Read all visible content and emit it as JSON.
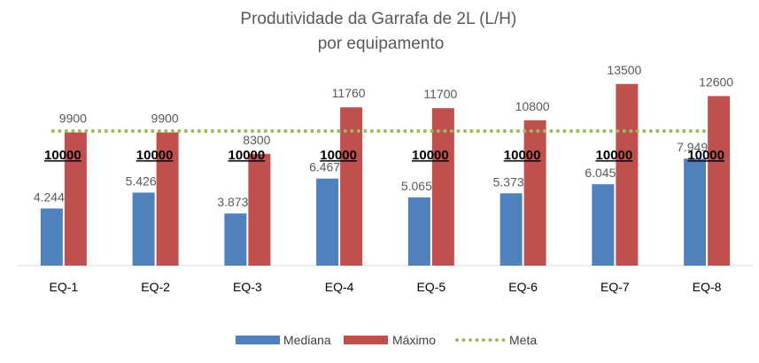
{
  "chart_data": {
    "type": "bar",
    "title": "Produtividade da Garrafa de 2L (L/H)",
    "subtitle": "por equipamento",
    "categories": [
      "EQ-1",
      "EQ-2",
      "EQ-3",
      "EQ-4",
      "EQ-5",
      "EQ-6",
      "EQ-7",
      "EQ-8"
    ],
    "series": [
      {
        "name": "Mediana",
        "type": "bar",
        "color": "#4F81BD",
        "values": [
          4244,
          5426,
          3873,
          6467,
          5065,
          5373,
          6045,
          7949
        ],
        "labels": [
          "4.244",
          "5.426",
          "3.873",
          "6.467",
          "5.065",
          "5.373",
          "6.045",
          "7.949"
        ]
      },
      {
        "name": "Máximo",
        "type": "bar",
        "color": "#C0504D",
        "values": [
          9900,
          9900,
          8300,
          11760,
          11700,
          10800,
          13500,
          12600
        ],
        "labels": [
          "9900",
          "9900",
          "8300",
          "11760",
          "11700",
          "10800",
          "13500",
          "12600"
        ]
      },
      {
        "name": "Meta",
        "type": "line",
        "style": "dotted",
        "color": "#9BBB59",
        "values": [
          10000,
          10000,
          10000,
          10000,
          10000,
          10000,
          10000,
          10000
        ],
        "labels": [
          "10000",
          "10000",
          "10000",
          "10000",
          "10000",
          "10000",
          "10000",
          "10000"
        ]
      }
    ],
    "ylim": [
      0,
      15000
    ],
    "grid": false,
    "legend": "bottom",
    "xlabel": "",
    "ylabel": ""
  }
}
